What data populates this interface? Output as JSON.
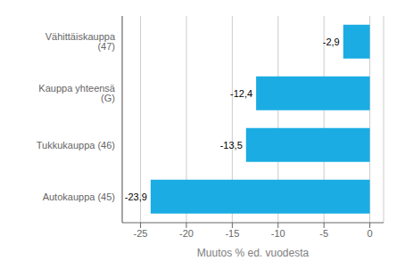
{
  "chart_data": {
    "type": "bar",
    "orientation": "horizontal",
    "categories": [
      "Autokauppa (45)",
      "Tukkukauppa (46)",
      "Kauppa yhteensä (G)",
      "Vähittäiskauppa (47)"
    ],
    "values": [
      -23.9,
      -13.5,
      -12.4,
      -2.9
    ],
    "value_labels": [
      "-23,9",
      "-13,5",
      "-12,4",
      "-2,9"
    ],
    "data_labels": true,
    "color": "#1aace3",
    "xlabel": "Muutos % ed. vuodesta",
    "xlim": [
      -27,
      1.5
    ],
    "xticks": [
      -25,
      -20,
      -15,
      -10,
      -5,
      0
    ],
    "grid": true
  }
}
